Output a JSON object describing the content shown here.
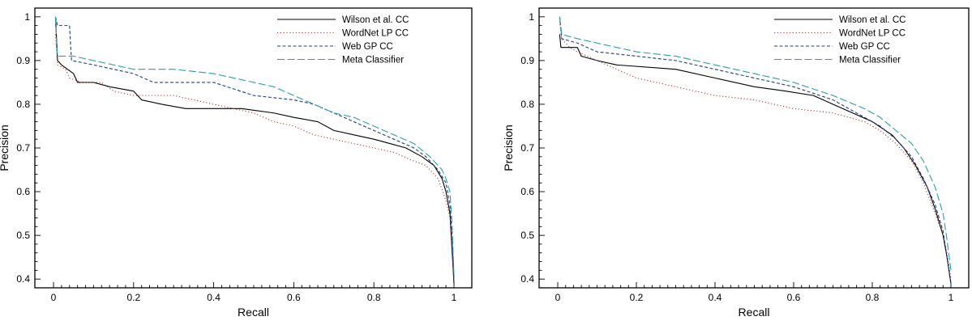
{
  "chart_data": [
    {
      "type": "line",
      "xlabel": "Recall",
      "ylabel": "Precision",
      "xlim": [
        0,
        1
      ],
      "ylim": [
        0.38,
        1.02
      ],
      "xticks": [
        "0",
        "0.2",
        "0.4",
        "0.6",
        "0.8",
        "1"
      ],
      "yticks": [
        "0.4",
        "0.5",
        "0.6",
        "0.7",
        "0.8",
        "0.9",
        "1"
      ],
      "legend_position": "top-right",
      "grid": false,
      "series": [
        {
          "name": "Wilson et al. CC",
          "color": "#000000",
          "dash": "solid",
          "points": [
            [
              0.005,
              1.0
            ],
            [
              0.01,
              0.9
            ],
            [
              0.02,
              0.89
            ],
            [
              0.05,
              0.87
            ],
            [
              0.06,
              0.85
            ],
            [
              0.1,
              0.85
            ],
            [
              0.14,
              0.84
            ],
            [
              0.2,
              0.83
            ],
            [
              0.22,
              0.81
            ],
            [
              0.27,
              0.8
            ],
            [
              0.33,
              0.79
            ],
            [
              0.47,
              0.79
            ],
            [
              0.55,
              0.78
            ],
            [
              0.6,
              0.77
            ],
            [
              0.66,
              0.76
            ],
            [
              0.7,
              0.74
            ],
            [
              0.75,
              0.73
            ],
            [
              0.8,
              0.72
            ],
            [
              0.84,
              0.71
            ],
            [
              0.88,
              0.7
            ],
            [
              0.92,
              0.68
            ],
            [
              0.95,
              0.66
            ],
            [
              0.97,
              0.63
            ],
            [
              0.98,
              0.6
            ],
            [
              0.99,
              0.55
            ],
            [
              0.995,
              0.47
            ],
            [
              1.0,
              0.39
            ]
          ]
        },
        {
          "name": "WordNet LP CC",
          "color": "#b03a2e",
          "dash": "dotted",
          "points": [
            [
              0.005,
              0.96
            ],
            [
              0.01,
              0.89
            ],
            [
              0.03,
              0.88
            ],
            [
              0.04,
              0.86
            ],
            [
              0.07,
              0.85
            ],
            [
              0.12,
              0.85
            ],
            [
              0.15,
              0.83
            ],
            [
              0.2,
              0.82
            ],
            [
              0.3,
              0.82
            ],
            [
              0.35,
              0.81
            ],
            [
              0.4,
              0.8
            ],
            [
              0.5,
              0.78
            ],
            [
              0.55,
              0.76
            ],
            [
              0.6,
              0.75
            ],
            [
              0.65,
              0.73
            ],
            [
              0.7,
              0.72
            ],
            [
              0.75,
              0.71
            ],
            [
              0.8,
              0.7
            ],
            [
              0.85,
              0.69
            ],
            [
              0.9,
              0.67
            ],
            [
              0.93,
              0.66
            ],
            [
              0.96,
              0.63
            ],
            [
              0.98,
              0.58
            ],
            [
              0.99,
              0.54
            ],
            [
              0.995,
              0.46
            ],
            [
              1.0,
              0.4
            ]
          ]
        },
        {
          "name": "Web GP CC",
          "color": "#1f3c88",
          "dash": "dashed",
          "points": [
            [
              0.005,
              1.0
            ],
            [
              0.01,
              0.98
            ],
            [
              0.02,
              0.98
            ],
            [
              0.04,
              0.98
            ],
            [
              0.045,
              0.9
            ],
            [
              0.1,
              0.89
            ],
            [
              0.2,
              0.87
            ],
            [
              0.25,
              0.85
            ],
            [
              0.4,
              0.85
            ],
            [
              0.5,
              0.82
            ],
            [
              0.6,
              0.81
            ],
            [
              0.65,
              0.8
            ],
            [
              0.7,
              0.78
            ],
            [
              0.75,
              0.76
            ],
            [
              0.8,
              0.74
            ],
            [
              0.85,
              0.72
            ],
            [
              0.9,
              0.7
            ],
            [
              0.93,
              0.68
            ],
            [
              0.96,
              0.65
            ],
            [
              0.98,
              0.62
            ],
            [
              0.99,
              0.57
            ],
            [
              0.995,
              0.5
            ],
            [
              1.0,
              0.4
            ]
          ]
        },
        {
          "name": "Meta Classifier",
          "color": "#2a9fa8",
          "dash": "longdash",
          "points": [
            [
              0.005,
              1.0
            ],
            [
              0.01,
              0.91
            ],
            [
              0.05,
              0.91
            ],
            [
              0.1,
              0.9
            ],
            [
              0.2,
              0.88
            ],
            [
              0.3,
              0.88
            ],
            [
              0.4,
              0.87
            ],
            [
              0.5,
              0.85
            ],
            [
              0.55,
              0.84
            ],
            [
              0.6,
              0.82
            ],
            [
              0.7,
              0.78
            ],
            [
              0.75,
              0.77
            ],
            [
              0.8,
              0.75
            ],
            [
              0.85,
              0.73
            ],
            [
              0.9,
              0.71
            ],
            [
              0.94,
              0.68
            ],
            [
              0.97,
              0.65
            ],
            [
              0.98,
              0.63
            ],
            [
              0.99,
              0.6
            ],
            [
              0.995,
              0.53
            ],
            [
              1.0,
              0.41
            ]
          ]
        }
      ]
    },
    {
      "type": "line",
      "xlabel": "Recall",
      "ylabel": "Precision",
      "xlim": [
        0,
        1
      ],
      "ylim": [
        0.38,
        1.02
      ],
      "xticks": [
        "0",
        "0.2",
        "0.4",
        "0.6",
        "0.8",
        "1"
      ],
      "yticks": [
        "0.4",
        "0.5",
        "0.6",
        "0.7",
        "0.8",
        "0.9",
        "1"
      ],
      "legend_position": "top-right",
      "grid": false,
      "series": [
        {
          "name": "Wilson et al. CC",
          "color": "#000000",
          "dash": "solid",
          "points": [
            [
              0.005,
              0.96
            ],
            [
              0.008,
              0.93
            ],
            [
              0.05,
              0.93
            ],
            [
              0.06,
              0.91
            ],
            [
              0.1,
              0.9
            ],
            [
              0.15,
              0.89
            ],
            [
              0.3,
              0.88
            ],
            [
              0.4,
              0.86
            ],
            [
              0.5,
              0.84
            ],
            [
              0.58,
              0.83
            ],
            [
              0.65,
              0.82
            ],
            [
              0.7,
              0.8
            ],
            [
              0.75,
              0.78
            ],
            [
              0.8,
              0.76
            ],
            [
              0.85,
              0.73
            ],
            [
              0.88,
              0.7
            ],
            [
              0.91,
              0.66
            ],
            [
              0.94,
              0.61
            ],
            [
              0.96,
              0.56
            ],
            [
              0.98,
              0.5
            ],
            [
              0.99,
              0.45
            ],
            [
              1.0,
              0.39
            ]
          ]
        },
        {
          "name": "WordNet LP CC",
          "color": "#b03a2e",
          "dash": "dotted",
          "points": [
            [
              0.005,
              0.99
            ],
            [
              0.01,
              0.95
            ],
            [
              0.03,
              0.93
            ],
            [
              0.05,
              0.92
            ],
            [
              0.1,
              0.9
            ],
            [
              0.15,
              0.88
            ],
            [
              0.2,
              0.86
            ],
            [
              0.3,
              0.84
            ],
            [
              0.4,
              0.82
            ],
            [
              0.5,
              0.81
            ],
            [
              0.6,
              0.79
            ],
            [
              0.7,
              0.78
            ],
            [
              0.78,
              0.76
            ],
            [
              0.82,
              0.74
            ],
            [
              0.86,
              0.71
            ],
            [
              0.9,
              0.67
            ],
            [
              0.93,
              0.62
            ],
            [
              0.96,
              0.55
            ],
            [
              0.98,
              0.5
            ],
            [
              0.99,
              0.46
            ],
            [
              1.0,
              0.4
            ]
          ]
        },
        {
          "name": "Web GP CC",
          "color": "#1f3c88",
          "dash": "dashed",
          "points": [
            [
              0.005,
              1.0
            ],
            [
              0.01,
              0.95
            ],
            [
              0.05,
              0.94
            ],
            [
              0.1,
              0.92
            ],
            [
              0.2,
              0.91
            ],
            [
              0.3,
              0.9
            ],
            [
              0.4,
              0.88
            ],
            [
              0.5,
              0.86
            ],
            [
              0.6,
              0.84
            ],
            [
              0.7,
              0.81
            ],
            [
              0.78,
              0.77
            ],
            [
              0.82,
              0.75
            ],
            [
              0.86,
              0.72
            ],
            [
              0.9,
              0.68
            ],
            [
              0.93,
              0.63
            ],
            [
              0.96,
              0.57
            ],
            [
              0.98,
              0.51
            ],
            [
              0.99,
              0.45
            ],
            [
              1.0,
              0.39
            ]
          ]
        },
        {
          "name": "Meta Classifier",
          "color": "#2a9fa8",
          "dash": "longdash",
          "points": [
            [
              0.005,
              1.0
            ],
            [
              0.01,
              0.96
            ],
            [
              0.05,
              0.95
            ],
            [
              0.1,
              0.94
            ],
            [
              0.2,
              0.92
            ],
            [
              0.3,
              0.91
            ],
            [
              0.4,
              0.89
            ],
            [
              0.5,
              0.87
            ],
            [
              0.6,
              0.85
            ],
            [
              0.7,
              0.82
            ],
            [
              0.78,
              0.79
            ],
            [
              0.82,
              0.77
            ],
            [
              0.86,
              0.74
            ],
            [
              0.9,
              0.71
            ],
            [
              0.93,
              0.67
            ],
            [
              0.96,
              0.61
            ],
            [
              0.98,
              0.55
            ],
            [
              0.99,
              0.49
            ],
            [
              1.0,
              0.42
            ]
          ]
        }
      ]
    }
  ]
}
